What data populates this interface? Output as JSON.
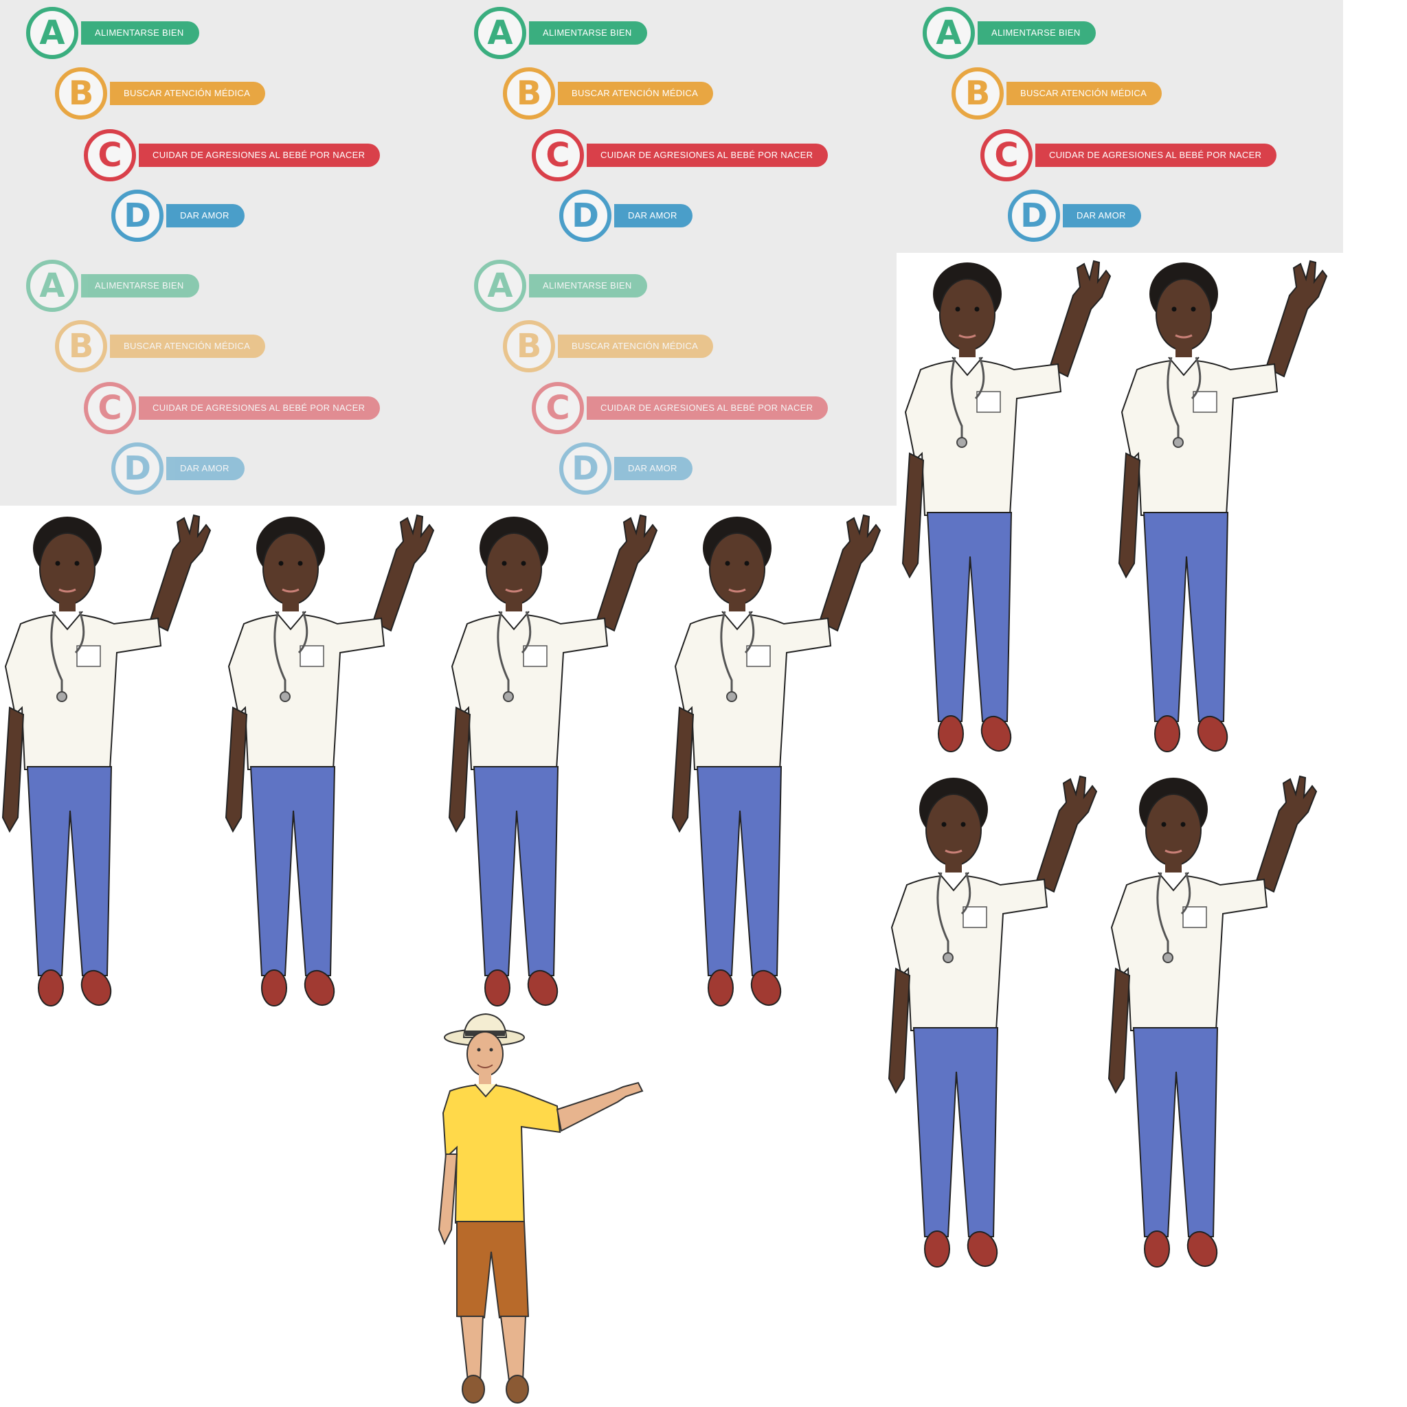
{
  "abcd_items": [
    {
      "letter": "A",
      "label": "ALIMENTARSE BIEN",
      "color": "#3aae7f"
    },
    {
      "letter": "B",
      "label": "BUSCAR ATENCIÓN MÉDICA",
      "color": "#e8a642"
    },
    {
      "letter": "C",
      "label": "CUIDAR DE AGRESIONES AL BEBÉ POR NACER",
      "color": "#d9404a"
    },
    {
      "letter": "D",
      "label": "DAR AMOR",
      "color": "#4a9ec9"
    }
  ],
  "colors": {
    "panel_background": "#ebebeb",
    "doctor_skin": "#5a3a2a",
    "doctor_shirt": "#f8f6ee",
    "doctor_pants": "#5f74c4",
    "doctor_shoes": "#a13a32",
    "farmer_shirt": "#ffd94a",
    "farmer_shorts": "#b86a2a",
    "farmer_skin": "#e7b48e"
  },
  "icons": [
    "health-worker-figure",
    "farmer-figure",
    "stethoscope-icon"
  ]
}
